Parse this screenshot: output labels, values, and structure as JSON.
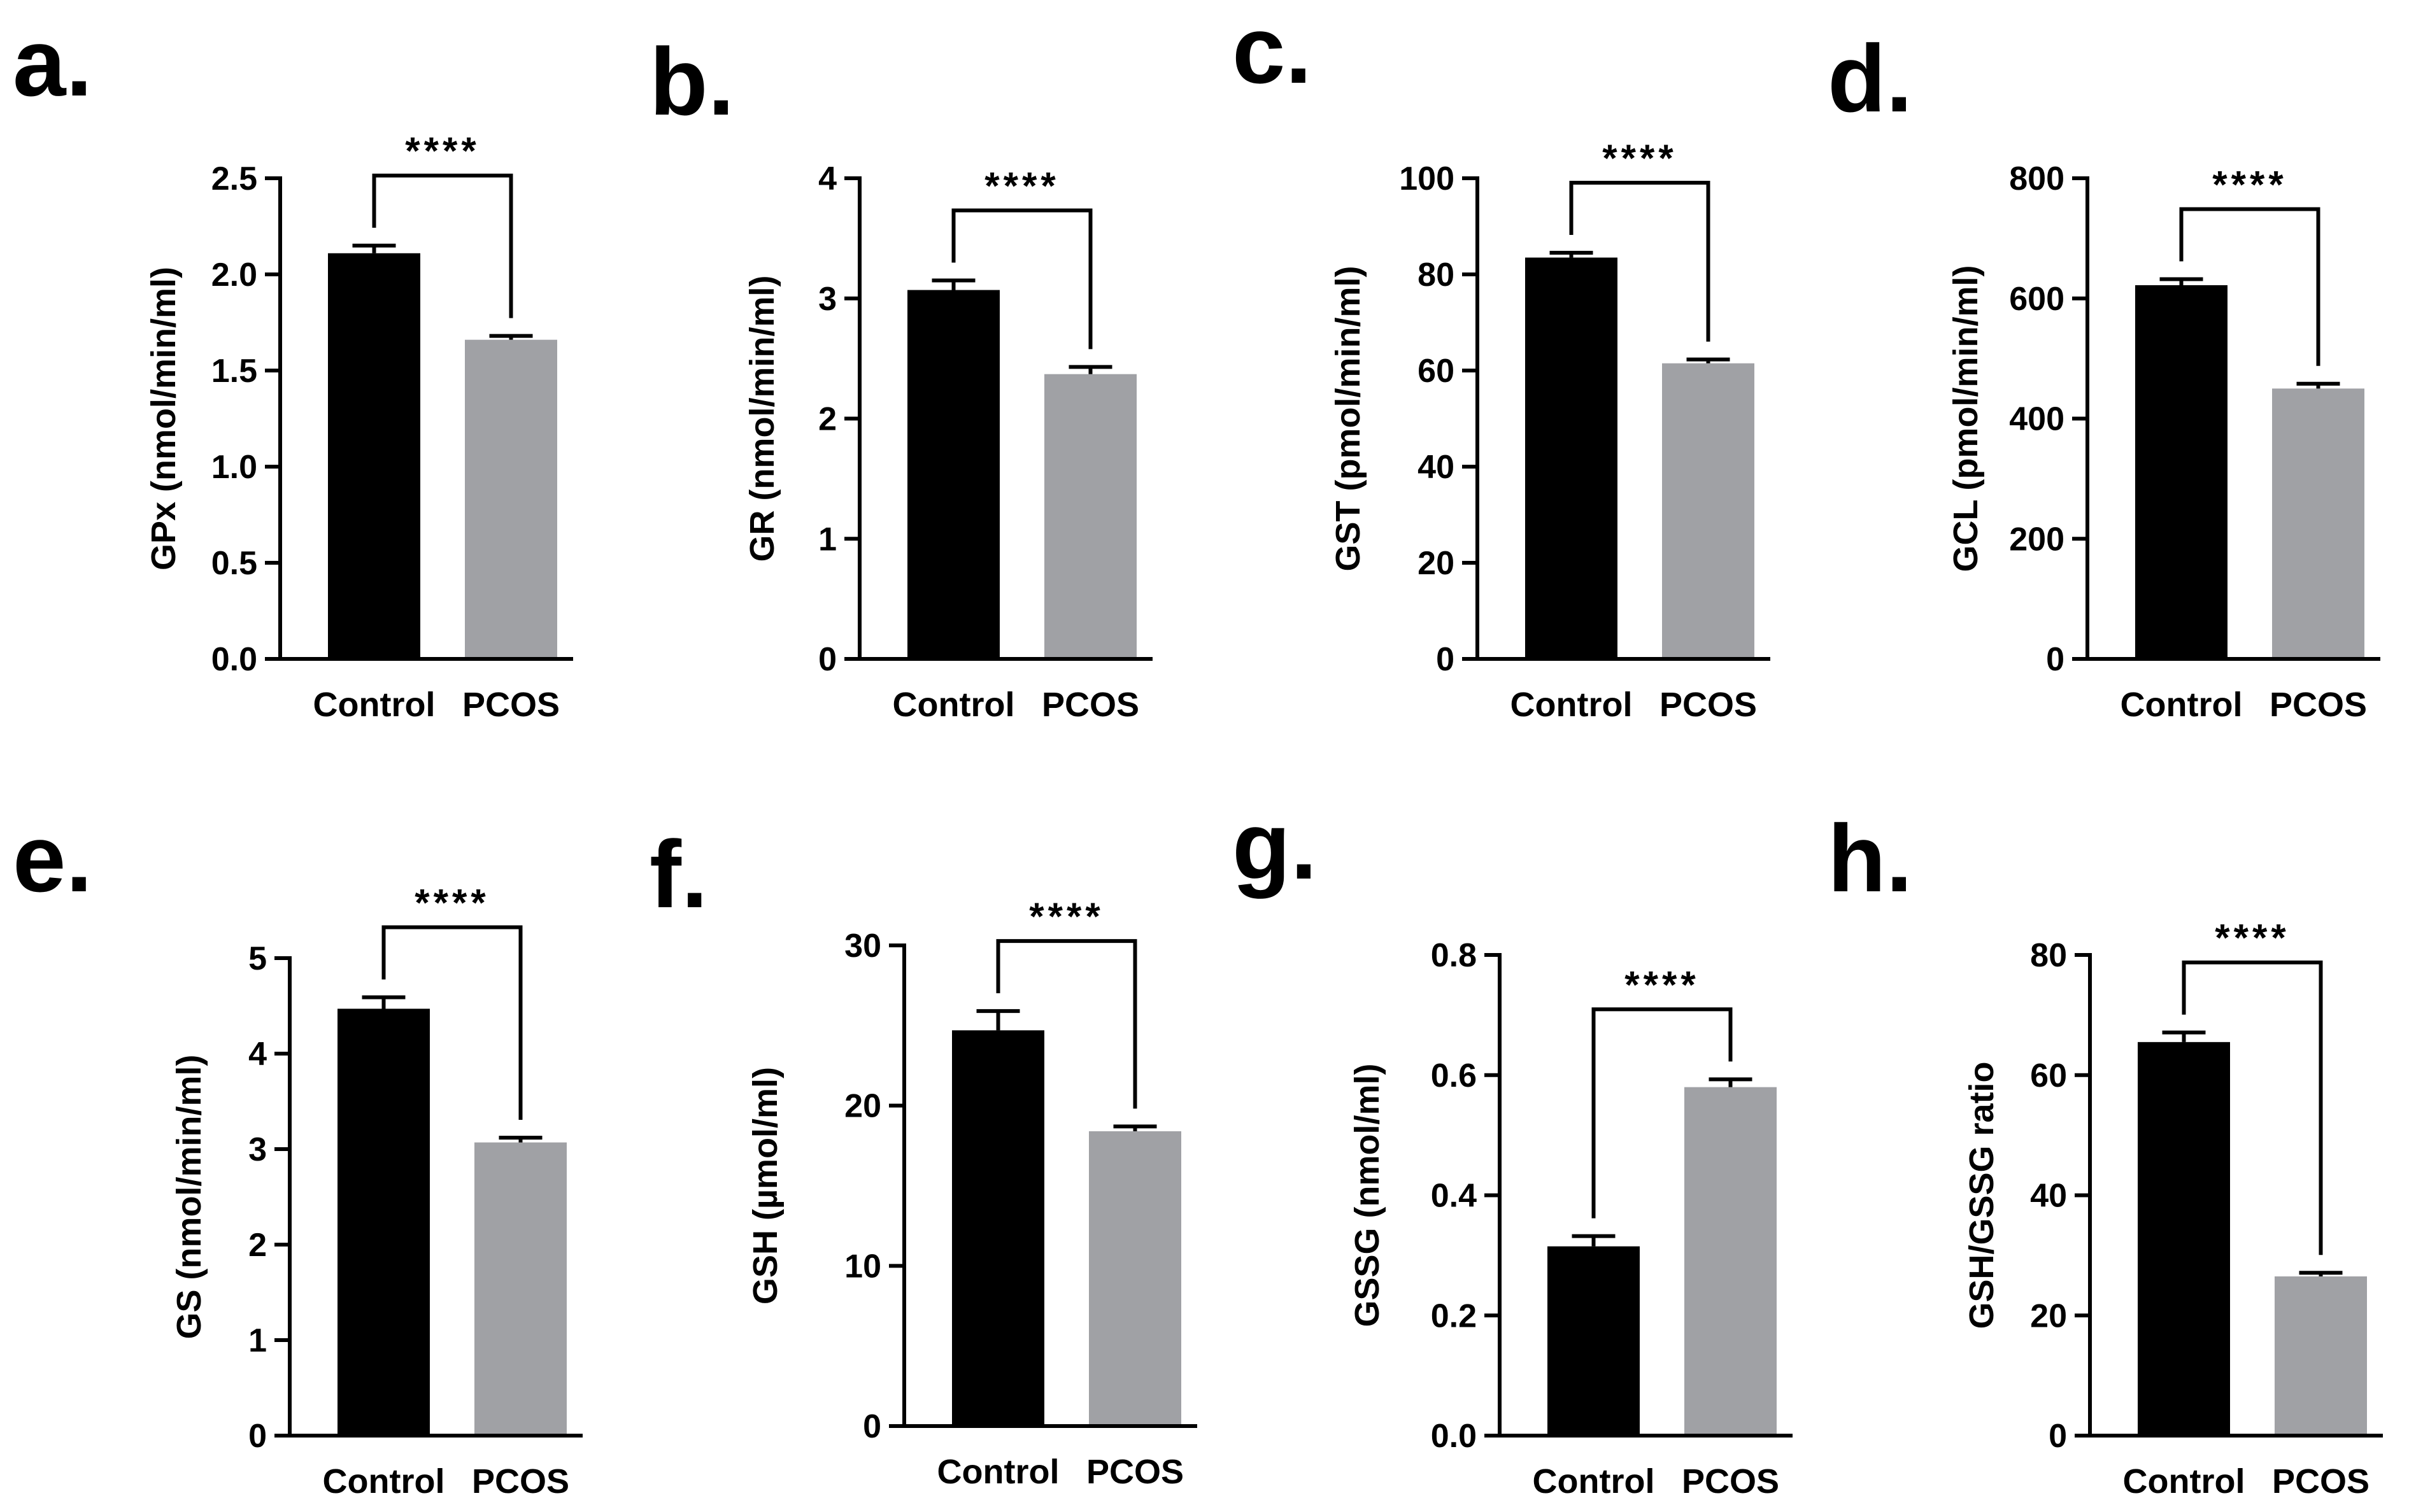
{
  "colors": {
    "control": "#000000",
    "pcos": "#a0a1a5",
    "axis": "#000000",
    "background": "#ffffff"
  },
  "chart_data": [
    {
      "panel": "a.",
      "type": "bar",
      "categories": [
        "Control",
        "PCOS"
      ],
      "values": [
        2.11,
        1.66
      ],
      "errors": [
        0.04,
        0.02
      ],
      "ylabel": "GPx  (nmol/min/ml)",
      "ylim": [
        0,
        2.5
      ],
      "yticks": [
        "0.0",
        "0.5",
        "1.0",
        "1.5",
        "2.0",
        "2.5"
      ],
      "tick_values": [
        0,
        0.5,
        1.0,
        1.5,
        2.0,
        2.5
      ],
      "significance": "****",
      "grid": false
    },
    {
      "panel": "b.",
      "type": "bar",
      "categories": [
        "Control",
        "PCOS"
      ],
      "values": [
        3.07,
        2.37
      ],
      "errors": [
        0.08,
        0.06
      ],
      "ylabel": "GR  (nmol/min/ml)",
      "ylim": [
        0,
        4
      ],
      "yticks": [
        "0",
        "1",
        "2",
        "3",
        "4"
      ],
      "tick_values": [
        0,
        1,
        2,
        3,
        4
      ],
      "significance": "****",
      "grid": false
    },
    {
      "panel": "c.",
      "type": "bar",
      "categories": [
        "Control",
        "PCOS"
      ],
      "values": [
        83.5,
        61.5
      ],
      "errors": [
        1.0,
        0.8
      ],
      "ylabel": "GST  (pmol/min/ml)",
      "ylim": [
        0,
        100
      ],
      "yticks": [
        "0",
        "20",
        "40",
        "60",
        "80",
        "100"
      ],
      "tick_values": [
        0,
        20,
        40,
        60,
        80,
        100
      ],
      "significance": "****",
      "grid": false
    },
    {
      "panel": "d.",
      "type": "bar",
      "categories": [
        "Control",
        "PCOS"
      ],
      "values": [
        622,
        450
      ],
      "errors": [
        10,
        8
      ],
      "ylabel": "GCL  (pmol/min/ml)",
      "ylim": [
        0,
        800
      ],
      "yticks": [
        "0",
        "200",
        "400",
        "600",
        "800"
      ],
      "tick_values": [
        0,
        200,
        400,
        600,
        800
      ],
      "significance": "****",
      "grid": false
    },
    {
      "panel": "e.",
      "type": "bar",
      "categories": [
        "Control",
        "PCOS"
      ],
      "values": [
        4.47,
        3.07
      ],
      "errors": [
        0.12,
        0.05
      ],
      "ylabel": "GS (nmol/min/ml)",
      "ylim": [
        0,
        5
      ],
      "yticks": [
        "0",
        "1",
        "2",
        "3",
        "4",
        "5"
      ],
      "tick_values": [
        0,
        1,
        2,
        3,
        4,
        5
      ],
      "significance": "****",
      "grid": false
    },
    {
      "panel": "f.",
      "type": "bar",
      "categories": [
        "Control",
        "PCOS"
      ],
      "values": [
        24.7,
        18.4
      ],
      "errors": [
        1.2,
        0.3
      ],
      "ylabel": "GSH (µmol/ml)",
      "ylim": [
        0,
        30
      ],
      "yticks": [
        "0",
        "10",
        "20",
        "30"
      ],
      "tick_values": [
        0,
        10,
        20,
        30
      ],
      "significance": "****",
      "grid": false
    },
    {
      "panel": "g.",
      "type": "bar",
      "categories": [
        "Control",
        "PCOS"
      ],
      "values": [
        0.315,
        0.58
      ],
      "errors": [
        0.017,
        0.013
      ],
      "ylabel": "GSSG (nmol/ml)",
      "ylim": [
        0,
        0.8
      ],
      "yticks": [
        "0.0",
        "0.2",
        "0.4",
        "0.6",
        "0.8"
      ],
      "tick_values": [
        0,
        0.2,
        0.4,
        0.6,
        0.8
      ],
      "significance": "****",
      "grid": false
    },
    {
      "panel": "h.",
      "type": "bar",
      "categories": [
        "Control",
        "PCOS"
      ],
      "values": [
        65.5,
        26.5
      ],
      "errors": [
        1.6,
        0.6
      ],
      "ylabel": "GSH/GSSG ratio",
      "ylim": [
        0,
        80
      ],
      "yticks": [
        "0",
        "20",
        "40",
        "60",
        "80"
      ],
      "tick_values": [
        0,
        20,
        40,
        60,
        80
      ],
      "significance": "****",
      "grid": false
    }
  ]
}
